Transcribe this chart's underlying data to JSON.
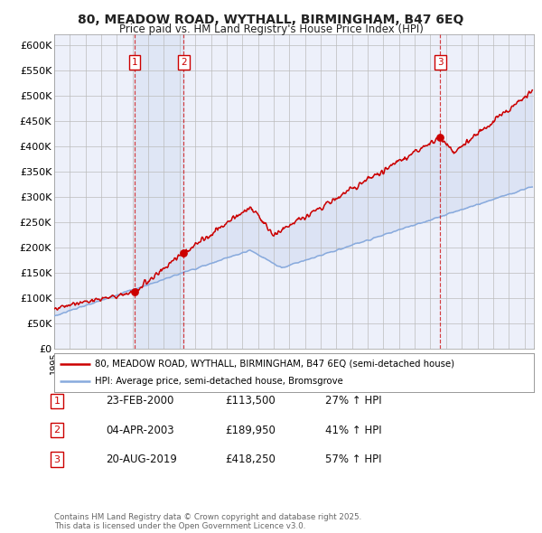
{
  "title": "80, MEADOW ROAD, WYTHALL, BIRMINGHAM, B47 6EQ",
  "subtitle": "Price paid vs. HM Land Registry's House Price Index (HPI)",
  "ylim": [
    0,
    620000
  ],
  "yticks": [
    0,
    50000,
    100000,
    150000,
    200000,
    250000,
    300000,
    350000,
    400000,
    450000,
    500000,
    550000,
    600000
  ],
  "ytick_labels": [
    "£0",
    "£50K",
    "£100K",
    "£150K",
    "£200K",
    "£250K",
    "£300K",
    "£350K",
    "£400K",
    "£450K",
    "£500K",
    "£550K",
    "£600K"
  ],
  "xlim_start": 1995.0,
  "xlim_end": 2025.6,
  "title_color": "#222222",
  "background_color": "#ffffff",
  "plot_bg_color": "#edf0fa",
  "grid_color": "#bbbbbb",
  "red_line_color": "#cc0000",
  "blue_line_color": "#88aadd",
  "shade_color": "#ccd8f0",
  "transactions": [
    {
      "num": 1,
      "date": "23-FEB-2000",
      "year": 2000.14,
      "price": 113500,
      "hpi_pct": "27%",
      "label": "1"
    },
    {
      "num": 2,
      "date": "04-APR-2003",
      "year": 2003.26,
      "price": 189950,
      "hpi_pct": "41%",
      "label": "2"
    },
    {
      "num": 3,
      "date": "20-AUG-2019",
      "year": 2019.63,
      "price": 418250,
      "hpi_pct": "57%",
      "label": "3"
    }
  ],
  "legend_line1": "80, MEADOW ROAD, WYTHALL, BIRMINGHAM, B47 6EQ (semi-detached house)",
  "legend_line2": "HPI: Average price, semi-detached house, Bromsgrove",
  "footnote": "Contains HM Land Registry data © Crown copyright and database right 2025.\nThis data is licensed under the Open Government Licence v3.0.",
  "table_rows": [
    [
      "1",
      "23-FEB-2000",
      "£113,500",
      "27% ↑ HPI"
    ],
    [
      "2",
      "04-APR-2003",
      "£189,950",
      "41% ↑ HPI"
    ],
    [
      "3",
      "20-AUG-2019",
      "£418,250",
      "57% ↑ HPI"
    ]
  ]
}
